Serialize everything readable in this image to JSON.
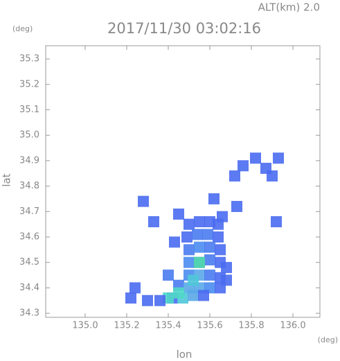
{
  "header": {
    "altitude": "ALT(km) 2.0",
    "unit_top": "(deg)",
    "timestamp": "2017/11/30 03:02:16"
  },
  "chart_data": {
    "type": "scatter",
    "xlabel": "lon",
    "ylabel": "lat",
    "xunit": "(deg)",
    "xlim": [
      134.81,
      136.13
    ],
    "ylim": [
      34.284,
      35.352
    ],
    "xticks": [
      {
        "value": 135.0,
        "label": "135.0"
      },
      135.2,
      135.4,
      135.6,
      135.8,
      {
        "value": 136.0,
        "label": "136.0"
      }
    ],
    "yticks": [
      34.3,
      34.4,
      34.5,
      34.6,
      34.7,
      34.8,
      34.9,
      {
        "value": 35.0,
        "label": "35.0"
      },
      35.1,
      35.2,
      35.3
    ],
    "x": [
      135.5,
      135.55,
      135.6,
      135.64,
      135.49,
      135.54,
      135.59,
      135.64,
      135.5,
      135.55,
      135.6,
      135.65,
      135.5,
      135.55,
      135.6,
      135.65,
      135.68,
      135.5,
      135.55,
      135.6,
      135.65,
      135.68,
      135.45,
      135.5,
      135.55,
      135.6,
      135.65,
      135.42,
      135.47,
      135.52,
      135.57,
      135.55,
      135.52,
      135.45,
      135.4,
      135.22,
      135.24,
      135.3,
      135.36,
      135.4,
      135.28,
      135.33,
      135.43,
      135.72,
      135.76,
      135.82,
      135.87,
      135.9,
      135.93,
      135.92,
      135.73,
      135.66,
      135.62,
      135.45
    ],
    "values": [
      34.65,
      34.66,
      34.66,
      34.65,
      34.6,
      34.61,
      34.61,
      34.6,
      34.55,
      34.56,
      34.56,
      34.55,
      34.5,
      34.5,
      34.51,
      34.5,
      34.48,
      34.45,
      34.45,
      34.45,
      34.44,
      34.43,
      34.41,
      34.4,
      34.4,
      34.4,
      34.4,
      34.36,
      34.36,
      34.37,
      34.37,
      34.5,
      34.43,
      34.38,
      34.36,
      34.36,
      34.4,
      34.35,
      34.35,
      34.45,
      34.74,
      34.66,
      34.58,
      34.84,
      34.88,
      34.91,
      34.87,
      34.84,
      34.91,
      34.66,
      34.72,
      34.68,
      34.75,
      34.69
    ],
    "point_colors": [
      "#4a6cf0",
      "#4a6cf0",
      "#4a6cf0",
      "#4a6cf0",
      "#4a6cf0",
      "#4a7cf0",
      "#4a7cf0",
      "#4a6cf0",
      "#4a7cf0",
      "#4a8cf0",
      "#4a7cf0",
      "#4a6cf0",
      "#4a8cf0",
      "#4a8cf0",
      "#4a7cf0",
      "#4a6cf0",
      "#4a6cf0",
      "#4a8cf0",
      "#5aa8e8",
      "#4a7cf0",
      "#4a6cf0",
      "#4a6cf0",
      "#4a7cf0",
      "#5aa8e8",
      "#5aa8e8",
      "#4a8cf0",
      "#4a6cf0",
      "#4a6cf0",
      "#50c8d8",
      "#5aa8e8",
      "#4a6cf0",
      "#50d8a8",
      "#50c8d8",
      "#50d8c8",
      "#50d8c8",
      "#4a6cf0",
      "#4a6cf0",
      "#4a6cf0",
      "#4a6cf0",
      "#4a7cf0",
      "#4a6cf0",
      "#4a6cf0",
      "#4a6cf0",
      "#4a6cf0",
      "#4a6cf0",
      "#4a6cf0",
      "#4a6cf0",
      "#4a6cf0",
      "#4a6cf0",
      "#4a6cf0",
      "#4a6cf0",
      "#4a6cf0",
      "#4a6cf0",
      "#4a6cf0"
    ]
  }
}
